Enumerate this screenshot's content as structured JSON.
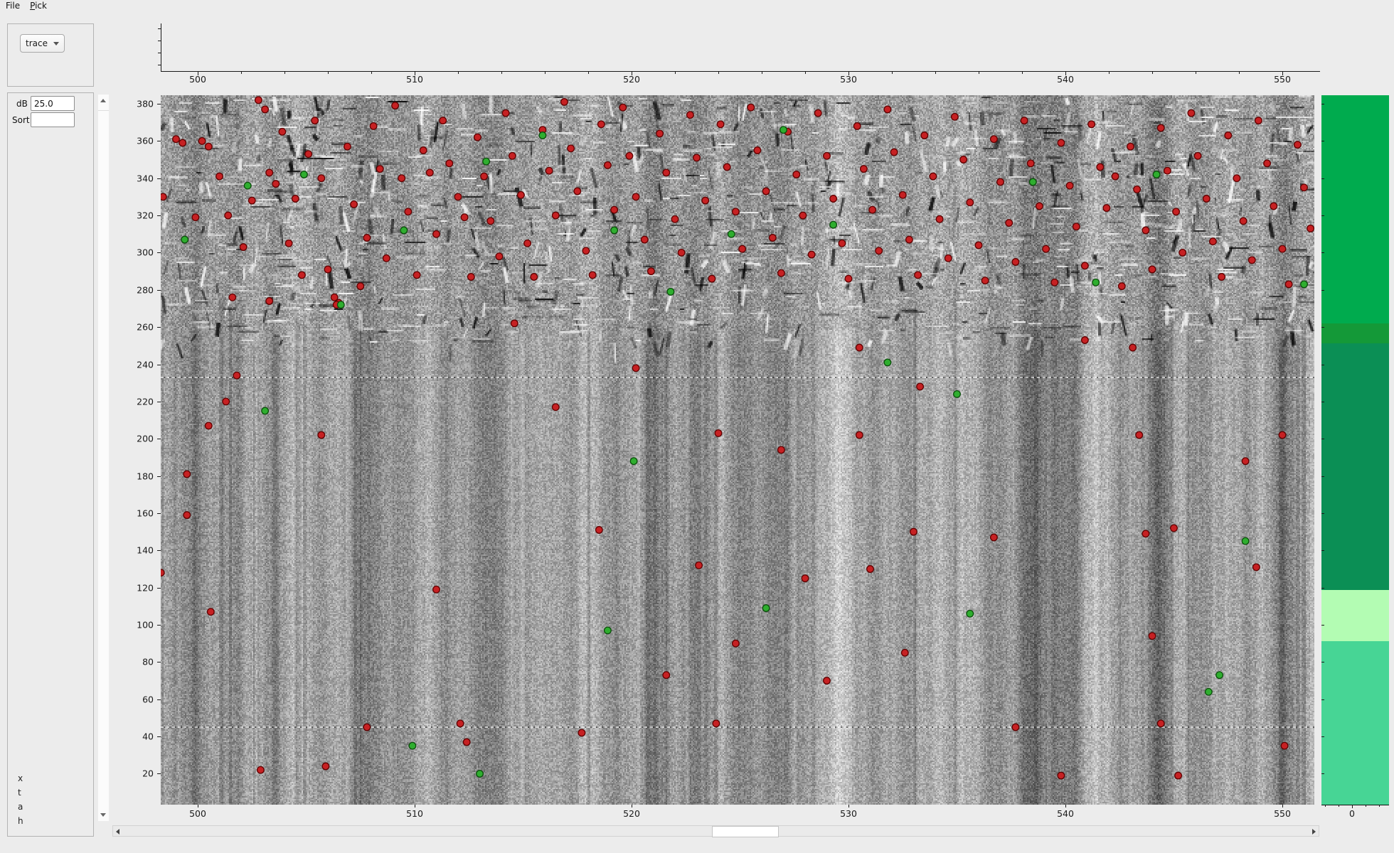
{
  "menubar": {
    "items": [
      {
        "label": "File",
        "underline_index": -1
      },
      {
        "label": "Pick",
        "underline_index": 0
      }
    ]
  },
  "sidebar": {
    "trace_select": {
      "value": "trace"
    },
    "db_label": "dB",
    "db_value": "25.0",
    "sort_label": "Sort",
    "sort_value": "",
    "footer_letters": [
      "x",
      "t",
      "a",
      "h"
    ]
  },
  "top_axis": {
    "tick_values": [
      500,
      510,
      520,
      530,
      540,
      550
    ],
    "minor_step": 2
  },
  "main_plot": {
    "x_tick_values": [
      500,
      510,
      520,
      530,
      540,
      550
    ],
    "y_tick_values": [
      380,
      360,
      340,
      320,
      300,
      280,
      260,
      240,
      220,
      200,
      180,
      160,
      140,
      120,
      100,
      80,
      60,
      40,
      20
    ],
    "x_range": [
      498.3,
      551.5
    ],
    "y_range": [
      3.4,
      384.6
    ],
    "dotted_line_y_values": [
      233.5,
      45.5
    ],
    "marker_colors": {
      "red_fill": "#c62123",
      "red_edge": "#5e0000",
      "green_fill": "#2fae2f",
      "green_edge": "#0b4d0b"
    },
    "picks_red": [
      [
        498.4,
        330
      ],
      [
        499.0,
        361
      ],
      [
        499.3,
        359
      ],
      [
        499.9,
        319
      ],
      [
        500.2,
        360
      ],
      [
        500.5,
        357
      ],
      [
        501.0,
        341
      ],
      [
        501.4,
        320
      ],
      [
        501.6,
        276
      ],
      [
        502.1,
        303
      ],
      [
        502.5,
        328
      ],
      [
        502.8,
        382
      ],
      [
        503.1,
        377
      ],
      [
        503.3,
        343
      ],
      [
        503.6,
        337
      ],
      [
        503.9,
        365
      ],
      [
        504.2,
        305
      ],
      [
        504.5,
        329
      ],
      [
        504.8,
        288
      ],
      [
        505.1,
        353
      ],
      [
        505.4,
        371
      ],
      [
        505.7,
        340
      ],
      [
        506.0,
        291
      ],
      [
        506.3,
        276
      ],
      [
        506.5,
        273
      ],
      [
        506.9,
        357
      ],
      [
        507.2,
        326
      ],
      [
        507.5,
        282
      ],
      [
        507.8,
        308
      ],
      [
        508.1,
        368
      ],
      [
        508.4,
        345
      ],
      [
        508.7,
        297
      ],
      [
        509.1,
        379
      ],
      [
        509.4,
        340
      ],
      [
        509.7,
        322
      ],
      [
        510.1,
        288
      ],
      [
        510.4,
        355
      ],
      [
        510.7,
        343
      ],
      [
        511.0,
        310
      ],
      [
        511.3,
        371
      ],
      [
        511.6,
        348
      ],
      [
        512.0,
        330
      ],
      [
        512.3,
        319
      ],
      [
        512.6,
        287
      ],
      [
        512.9,
        362
      ],
      [
        513.2,
        341
      ],
      [
        513.5,
        317
      ],
      [
        513.9,
        298
      ],
      [
        514.2,
        375
      ],
      [
        514.5,
        352
      ],
      [
        514.9,
        331
      ],
      [
        515.2,
        305
      ],
      [
        515.5,
        287
      ],
      [
        515.9,
        366
      ],
      [
        516.2,
        344
      ],
      [
        516.5,
        320
      ],
      [
        516.9,
        381
      ],
      [
        517.2,
        356
      ],
      [
        517.5,
        333
      ],
      [
        517.9,
        301
      ],
      [
        518.2,
        288
      ],
      [
        518.6,
        369
      ],
      [
        518.9,
        347
      ],
      [
        519.2,
        323
      ],
      [
        519.6,
        378
      ],
      [
        519.9,
        352
      ],
      [
        520.2,
        330
      ],
      [
        520.6,
        307
      ],
      [
        520.9,
        290
      ],
      [
        521.3,
        364
      ],
      [
        521.6,
        343
      ],
      [
        522.0,
        318
      ],
      [
        522.3,
        300
      ],
      [
        522.7,
        374
      ],
      [
        523.0,
        351
      ],
      [
        523.4,
        328
      ],
      [
        523.7,
        286
      ],
      [
        524.1,
        369
      ],
      [
        524.4,
        346
      ],
      [
        524.8,
        322
      ],
      [
        525.1,
        302
      ],
      [
        525.5,
        378
      ],
      [
        525.8,
        355
      ],
      [
        526.2,
        333
      ],
      [
        526.5,
        308
      ],
      [
        526.9,
        289
      ],
      [
        527.2,
        365
      ],
      [
        527.6,
        342
      ],
      [
        527.9,
        320
      ],
      [
        528.3,
        299
      ],
      [
        528.6,
        375
      ],
      [
        529.0,
        352
      ],
      [
        529.3,
        329
      ],
      [
        529.7,
        305
      ],
      [
        530.0,
        286
      ],
      [
        530.4,
        368
      ],
      [
        530.7,
        345
      ],
      [
        531.1,
        323
      ],
      [
        531.4,
        301
      ],
      [
        531.8,
        377
      ],
      [
        532.1,
        354
      ],
      [
        532.5,
        331
      ],
      [
        532.8,
        307
      ],
      [
        533.2,
        288
      ],
      [
        533.5,
        363
      ],
      [
        533.9,
        341
      ],
      [
        534.2,
        318
      ],
      [
        534.6,
        297
      ],
      [
        534.9,
        373
      ],
      [
        535.3,
        350
      ],
      [
        535.6,
        327
      ],
      [
        536.0,
        304
      ],
      [
        536.3,
        285
      ],
      [
        536.7,
        361
      ],
      [
        537.0,
        338
      ],
      [
        537.4,
        316
      ],
      [
        537.7,
        295
      ],
      [
        538.1,
        371
      ],
      [
        538.4,
        348
      ],
      [
        538.8,
        325
      ],
      [
        539.1,
        302
      ],
      [
        539.5,
        284
      ],
      [
        539.8,
        359
      ],
      [
        540.2,
        336
      ],
      [
        540.5,
        314
      ],
      [
        540.9,
        293
      ],
      [
        541.2,
        369
      ],
      [
        541.6,
        346
      ],
      [
        541.9,
        324
      ],
      [
        542.3,
        341
      ],
      [
        542.6,
        282
      ],
      [
        543.0,
        357
      ],
      [
        543.3,
        334
      ],
      [
        543.7,
        312
      ],
      [
        544.0,
        291
      ],
      [
        544.4,
        367
      ],
      [
        544.7,
        344
      ],
      [
        545.1,
        322
      ],
      [
        545.4,
        300
      ],
      [
        545.8,
        375
      ],
      [
        546.1,
        352
      ],
      [
        546.5,
        329
      ],
      [
        546.8,
        306
      ],
      [
        547.2,
        287
      ],
      [
        547.5,
        363
      ],
      [
        547.9,
        340
      ],
      [
        548.2,
        317
      ],
      [
        548.6,
        296
      ],
      [
        548.9,
        371
      ],
      [
        549.3,
        348
      ],
      [
        549.6,
        325
      ],
      [
        550.0,
        302
      ],
      [
        550.3,
        283
      ],
      [
        550.7,
        358
      ],
      [
        551.0,
        335
      ],
      [
        551.3,
        313
      ],
      [
        503.3,
        274
      ],
      [
        506.4,
        272
      ],
      [
        514.6,
        262
      ],
      [
        540.9,
        253
      ],
      [
        530.5,
        249
      ],
      [
        543.1,
        249
      ],
      [
        498.3,
        128
      ],
      [
        499.5,
        181
      ],
      [
        499.5,
        159
      ],
      [
        500.5,
        207
      ],
      [
        500.6,
        107
      ],
      [
        501.3,
        220
      ],
      [
        501.8,
        234
      ],
      [
        502.9,
        22
      ],
      [
        505.7,
        202
      ],
      [
        505.9,
        24
      ],
      [
        507.8,
        45
      ],
      [
        511.0,
        119
      ],
      [
        512.1,
        47
      ],
      [
        512.4,
        37
      ],
      [
        516.5,
        217
      ],
      [
        517.7,
        42
      ],
      [
        518.5,
        151
      ],
      [
        520.2,
        238
      ],
      [
        521.6,
        73
      ],
      [
        523.1,
        132
      ],
      [
        523.9,
        47
      ],
      [
        524.8,
        90
      ],
      [
        524.0,
        203
      ],
      [
        526.9,
        194
      ],
      [
        528.0,
        125
      ],
      [
        529.0,
        70
      ],
      [
        530.5,
        202
      ],
      [
        531.0,
        130
      ],
      [
        532.6,
        85
      ],
      [
        533.0,
        150
      ],
      [
        533.3,
        228
      ],
      [
        536.7,
        147
      ],
      [
        537.7,
        45
      ],
      [
        539.8,
        19
      ],
      [
        543.4,
        202
      ],
      [
        544.4,
        47
      ],
      [
        545.0,
        152
      ],
      [
        545.2,
        19
      ],
      [
        548.3,
        188
      ],
      [
        544.0,
        94
      ],
      [
        550.1,
        35
      ],
      [
        548.8,
        131
      ],
      [
        550.0,
        202
      ],
      [
        543.7,
        149
      ]
    ],
    "picks_green": [
      [
        499.4,
        307
      ],
      [
        502.3,
        336
      ],
      [
        504.9,
        342
      ],
      [
        506.6,
        272
      ],
      [
        509.5,
        312
      ],
      [
        513.3,
        349
      ],
      [
        515.9,
        363
      ],
      [
        519.2,
        312
      ],
      [
        521.8,
        279
      ],
      [
        524.6,
        310
      ],
      [
        527.0,
        366
      ],
      [
        529.3,
        315
      ],
      [
        531.8,
        241
      ],
      [
        535.0,
        224
      ],
      [
        538.5,
        338
      ],
      [
        541.4,
        284
      ],
      [
        544.2,
        342
      ],
      [
        546.6,
        64
      ],
      [
        548.3,
        145
      ],
      [
        503.1,
        215
      ],
      [
        513.0,
        20
      ],
      [
        518.9,
        97
      ],
      [
        526.2,
        109
      ],
      [
        535.6,
        106
      ],
      [
        547.1,
        73
      ],
      [
        509.9,
        35
      ],
      [
        520.1,
        188
      ],
      [
        551.0,
        283
      ]
    ]
  },
  "colorbar": {
    "bands": [
      {
        "color": "#00ab4e",
        "frac": 0.322
      },
      {
        "color": "#149938",
        "frac": 0.028
      },
      {
        "color": "#0b8f55",
        "frac": 0.348
      },
      {
        "color": "#b3fcb3",
        "frac": 0.072
      },
      {
        "color": "#47d595",
        "frac": 0.23
      }
    ],
    "bottom_tick_label": "0"
  }
}
